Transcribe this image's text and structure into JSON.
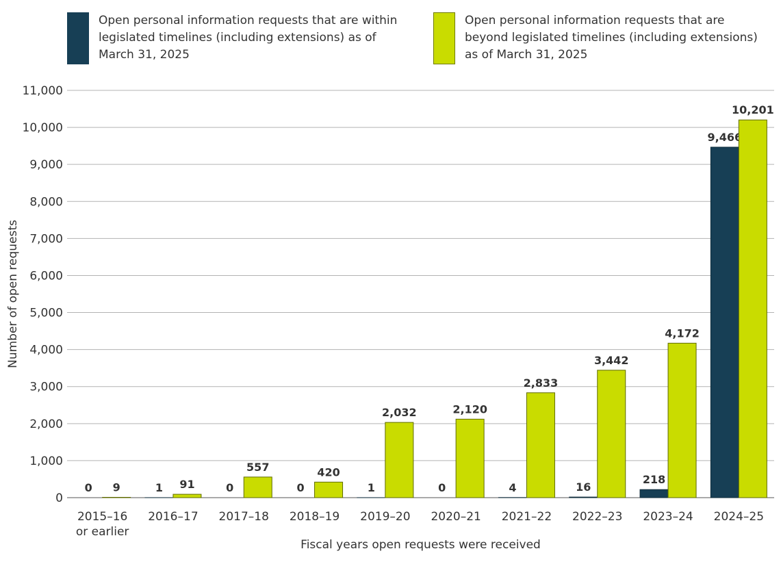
{
  "chart_data": {
    "type": "bar",
    "title": "",
    "xlabel": "Fiscal years open requests were received",
    "ylabel": "Number of open requests",
    "ylim": [
      0,
      11000
    ],
    "yticks": [
      "0",
      "1,000",
      "2,000",
      "3,000",
      "4,000",
      "5,000",
      "6,000",
      "7,000",
      "8,000",
      "9,000",
      "10,000",
      "11,000"
    ],
    "ytick_values": [
      0,
      1000,
      2000,
      3000,
      4000,
      5000,
      6000,
      7000,
      8000,
      9000,
      10000,
      11000
    ],
    "grid": true,
    "legend_position": "top",
    "categories": [
      [
        "2015–16",
        "or earlier"
      ],
      [
        "2016–17"
      ],
      [
        "2017–18"
      ],
      [
        "2018–19"
      ],
      [
        "2019–20"
      ],
      [
        "2020–21"
      ],
      [
        "2021–22"
      ],
      [
        "2022–23"
      ],
      [
        "2023–24"
      ],
      [
        "2024–25"
      ]
    ],
    "series": [
      {
        "name": "Open personal information requests that are within legislated timelines (including extensions) as of March 31, 2025",
        "color": "#173f55",
        "values": [
          0,
          1,
          0,
          0,
          1,
          0,
          4,
          16,
          218,
          9466
        ],
        "labels": [
          "0",
          "1",
          "0",
          "0",
          "1",
          "0",
          "4",
          "16",
          "218",
          "9,466"
        ]
      },
      {
        "name": "Open personal information requests that are beyond legislated timelines (including extensions) as of March 31, 2025",
        "color": "#c9dc00",
        "values": [
          9,
          91,
          557,
          420,
          2032,
          2120,
          2833,
          3442,
          4172,
          10201
        ],
        "labels": [
          "9",
          "91",
          "557",
          "420",
          "2,032",
          "2,120",
          "2,833",
          "3,442",
          "4,172",
          "10,201"
        ]
      }
    ]
  },
  "legend": {
    "within": [
      "Open personal information requests that are within",
      "legislated timelines (including extensions) as of",
      "March 31, 2025"
    ],
    "beyond": [
      "Open personal information requests that are",
      "beyond legislated timelines (including extensions)",
      "as of March 31, 2025"
    ]
  }
}
